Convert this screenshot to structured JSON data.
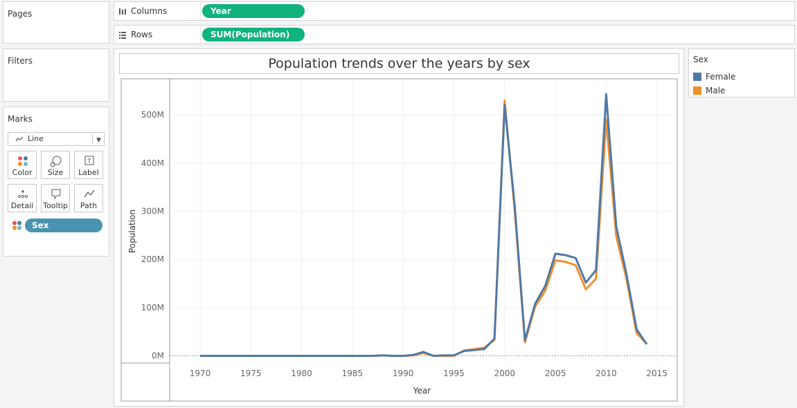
{
  "cards": {
    "pages": "Pages",
    "filters": "Filters",
    "marks": "Marks"
  },
  "shelves": {
    "columns_label": "Columns",
    "columns_pill": "Year",
    "rows_label": "Rows",
    "rows_pill": "SUM(Population)"
  },
  "marks": {
    "type": "Line",
    "buttons": [
      {
        "label": "Color",
        "icon": "color-icon"
      },
      {
        "label": "Size",
        "icon": "size-icon"
      },
      {
        "label": "Label",
        "icon": "label-icon"
      },
      {
        "label": "Detail",
        "icon": "detail-icon"
      },
      {
        "label": "Tooltip",
        "icon": "tooltip-icon"
      },
      {
        "label": "Path",
        "icon": "path-icon"
      }
    ],
    "color_field": "Sex"
  },
  "legend": {
    "title": "Sex",
    "items": [
      {
        "label": "Female",
        "color": "#4e79a7"
      },
      {
        "label": "Male",
        "color": "#f28e2b"
      }
    ]
  },
  "chart_data": {
    "type": "line",
    "title": "Population trends over the years by sex",
    "xlabel": "Year",
    "ylabel": "Population",
    "xlim": [
      1967,
      2017
    ],
    "ylim": [
      -15,
      575
    ],
    "x_ticks": [
      1970,
      1975,
      1980,
      1985,
      1990,
      1995,
      2000,
      2005,
      2010,
      2015
    ],
    "y_ticks": [
      0,
      100,
      200,
      300,
      400,
      500
    ],
    "y_tick_labels": [
      "0M",
      "100M",
      "200M",
      "300M",
      "400M",
      "500M"
    ],
    "grid": true,
    "legend_position": "right",
    "x": [
      1970,
      1971,
      1972,
      1973,
      1974,
      1975,
      1976,
      1977,
      1978,
      1979,
      1980,
      1981,
      1982,
      1983,
      1984,
      1985,
      1986,
      1987,
      1988,
      1989,
      1990,
      1991,
      1992,
      1993,
      1994,
      1995,
      1996,
      1997,
      1998,
      1999,
      2000,
      2001,
      2002,
      2003,
      2004,
      2005,
      2006,
      2007,
      2008,
      2009,
      2010,
      2011,
      2012,
      2013,
      2014
    ],
    "series": [
      {
        "name": "Male",
        "color": "#f28e2b",
        "values": [
          0,
          0,
          0,
          0,
          0,
          0,
          0,
          0,
          0,
          0,
          0,
          0,
          0,
          0,
          0,
          0,
          0,
          0,
          1,
          0,
          0,
          1,
          6,
          0,
          0,
          0,
          11,
          14,
          17,
          33,
          530,
          300,
          28,
          102,
          135,
          198,
          195,
          188,
          138,
          160,
          490,
          248,
          160,
          47,
          25
        ]
      },
      {
        "name": "Female",
        "color": "#4e79a7",
        "values": [
          0,
          0,
          0,
          0,
          0,
          0,
          0,
          0,
          0,
          0,
          0,
          0,
          0,
          0,
          0,
          0,
          0,
          0,
          1,
          0,
          0,
          2,
          8,
          0,
          1,
          1,
          10,
          12,
          14,
          36,
          520,
          310,
          32,
          108,
          145,
          212,
          209,
          203,
          152,
          178,
          543,
          268,
          170,
          55,
          24
        ]
      }
    ]
  }
}
